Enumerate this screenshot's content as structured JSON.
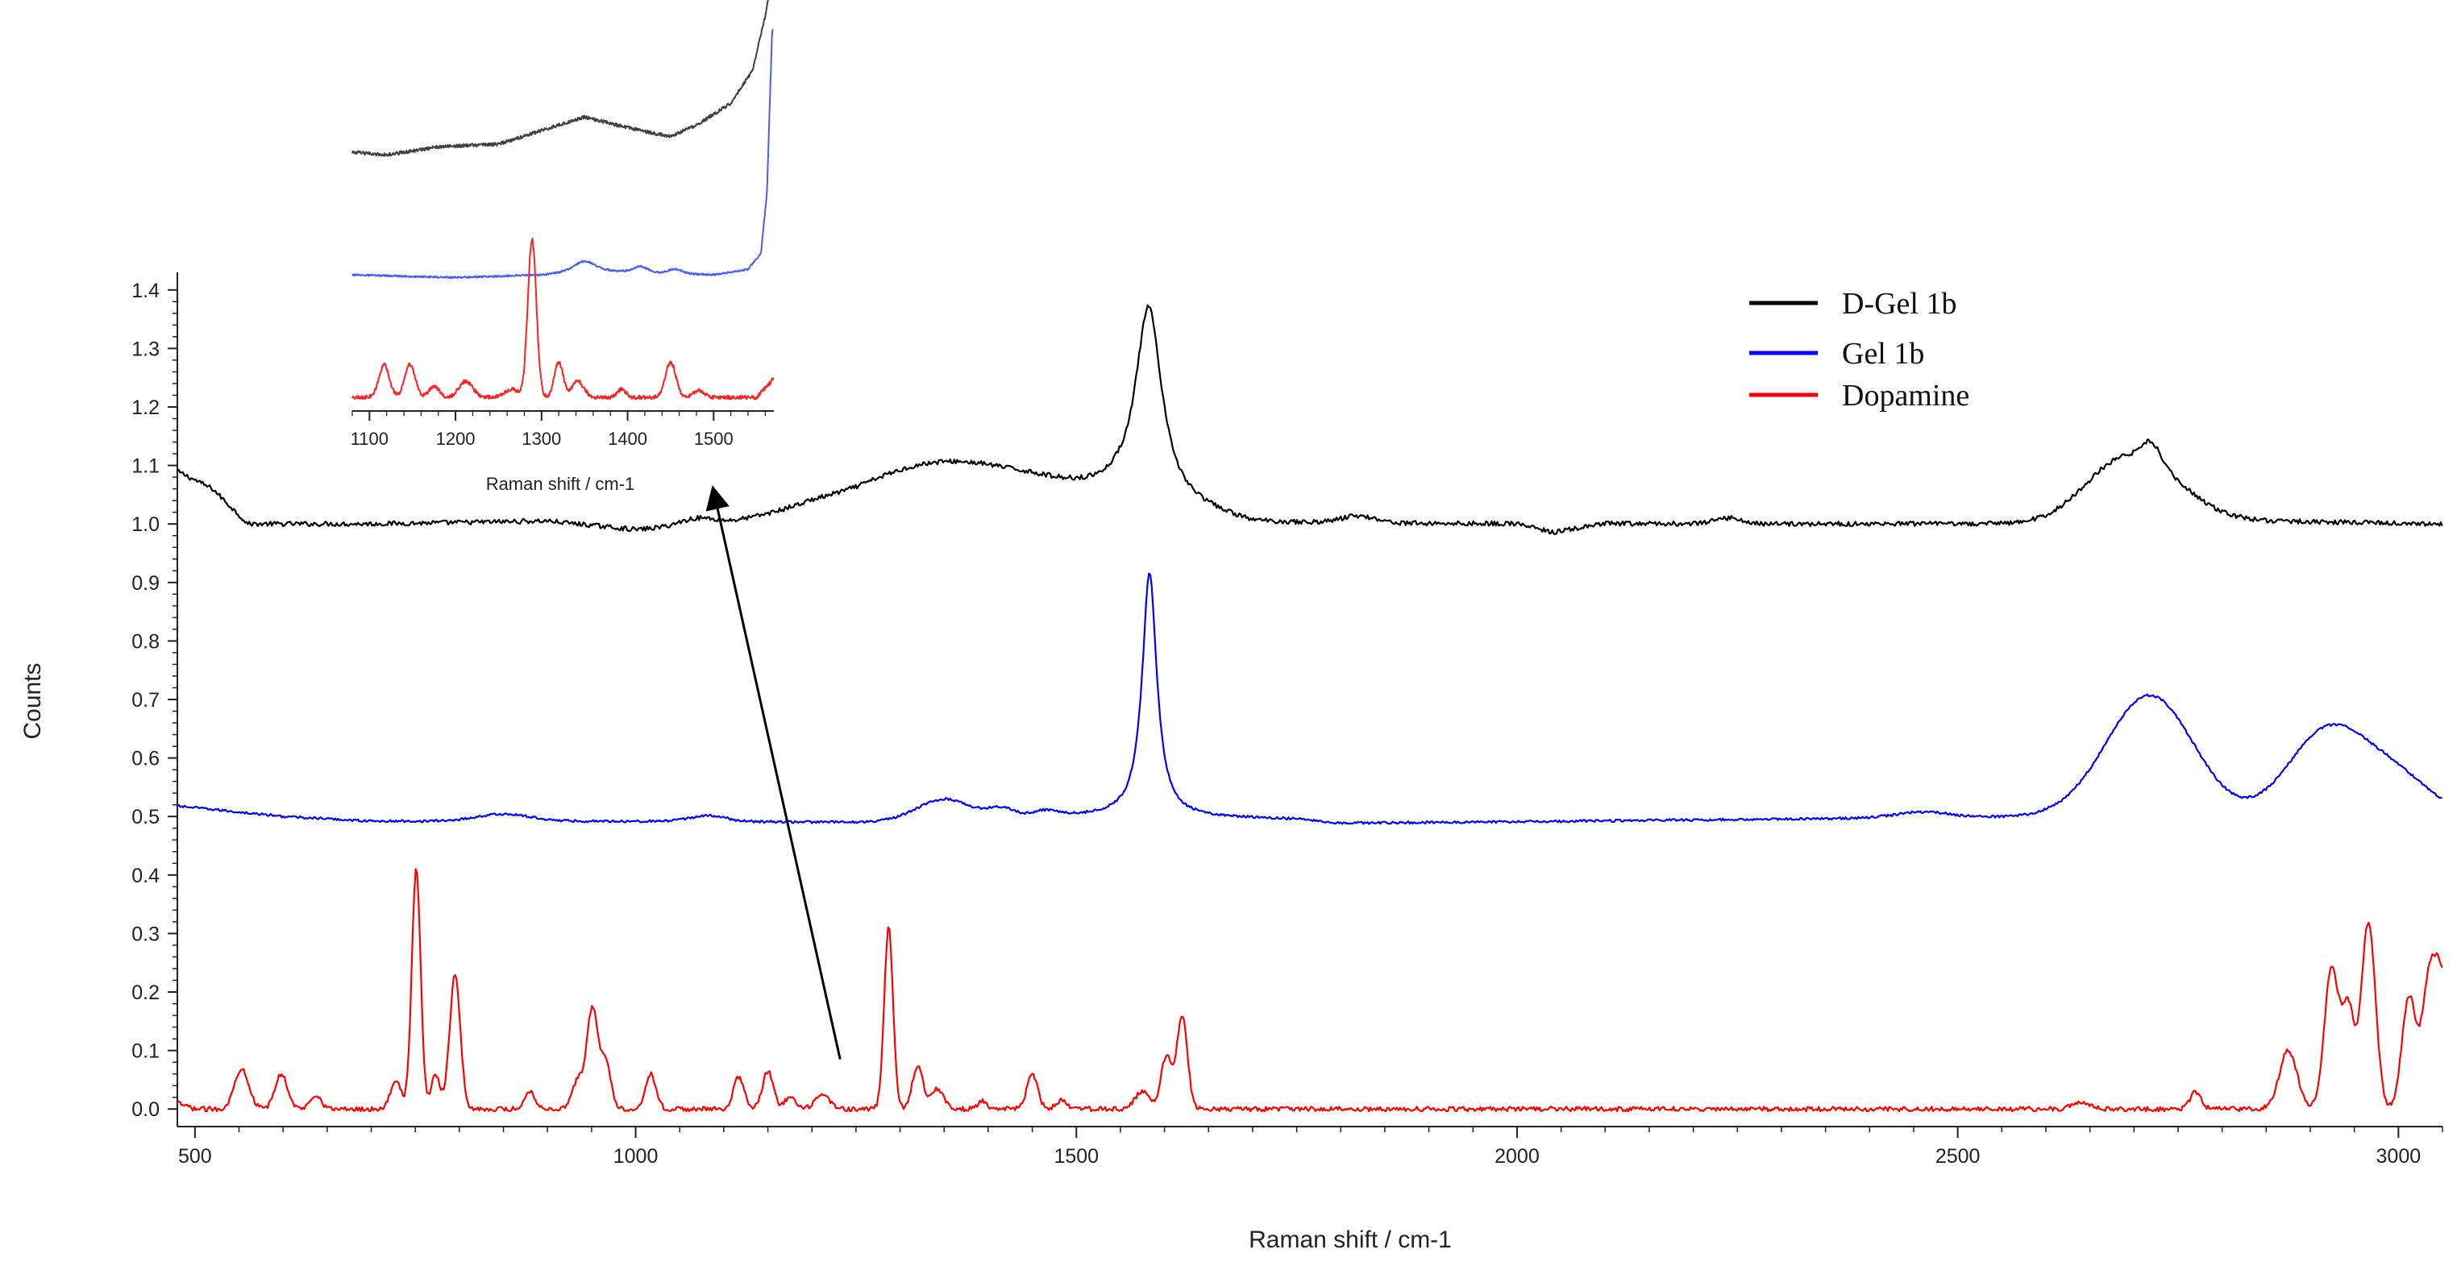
{
  "chart_data": [
    {
      "type": "line",
      "title": "",
      "xlabel": "Raman shift / cm-1",
      "ylabel": "Counts",
      "xlim": [
        480,
        3050
      ],
      "ylim": [
        -0.03,
        1.43
      ],
      "x_ticks": [
        500,
        1000,
        1500,
        2000,
        2500,
        3000
      ],
      "y_ticks": [
        "0.0",
        "0.1",
        "0.2",
        "0.3",
        "0.4",
        "0.5",
        "0.6",
        "0.7",
        "0.8",
        "0.9",
        "1.0",
        "1.1",
        "1.2",
        "1.3",
        "1.4"
      ],
      "grid": false,
      "legend_position": "top-right",
      "series": [
        {
          "name": "D-Gel 1b",
          "color": "#000000",
          "baseline": 1.0,
          "noise": 0.004,
          "drift": [
            [
              480,
              1.09
            ],
            [
              520,
              1.06
            ],
            [
              560,
              1.0
            ],
            [
              700,
              1.0
            ],
            [
              900,
              1.005
            ],
            [
              1000,
              0.99
            ],
            [
              1100,
              1.0
            ],
            [
              1200,
              1.02
            ],
            [
              1250,
              1.02
            ],
            [
              1450,
              1.05
            ],
            [
              1550,
              1.05
            ],
            [
              1700,
              1.0
            ],
            [
              2000,
              1.0
            ],
            [
              2040,
              0.985
            ],
            [
              2100,
              1.0
            ],
            [
              2600,
              1.0
            ],
            [
              2660,
              1.01
            ],
            [
              3050,
              1.0
            ]
          ],
          "peaks": [
            {
              "c": 1340,
              "h": 0.07,
              "w": 90,
              "shape": "g"
            },
            {
              "c": 1070,
              "h": 0.012,
              "w": 20,
              "shape": "g"
            },
            {
              "c": 1582,
              "h": 0.33,
              "w": 18,
              "shape": "l"
            },
            {
              "c": 1820,
              "h": 0.012,
              "w": 20,
              "shape": "g"
            },
            {
              "c": 2240,
              "h": 0.01,
              "w": 15,
              "shape": "g"
            },
            {
              "c": 2700,
              "h": 0.11,
              "w": 50,
              "shape": "g"
            },
            {
              "c": 2720,
              "h": 0.03,
              "w": 10,
              "shape": "g"
            }
          ]
        },
        {
          "name": "Gel  1b",
          "color": "#0000ff",
          "baseline": 0.5,
          "noise": 0.002,
          "drift": [
            [
              480,
              0.518
            ],
            [
              600,
              0.5
            ],
            [
              700,
              0.492
            ],
            [
              1000,
              0.492
            ],
            [
              1250,
              0.49
            ],
            [
              1500,
              0.5
            ],
            [
              1750,
              0.495
            ],
            [
              1800,
              0.488
            ],
            [
              2600,
              0.5
            ],
            [
              2800,
              0.495
            ],
            [
              3050,
              0.5
            ]
          ],
          "peaks": [
            {
              "c": 1350,
              "h": 0.035,
              "w": 30,
              "shape": "g"
            },
            {
              "c": 1415,
              "h": 0.015,
              "w": 15,
              "shape": "g"
            },
            {
              "c": 1465,
              "h": 0.01,
              "w": 15,
              "shape": "g"
            },
            {
              "c": 850,
              "h": 0.012,
              "w": 30,
              "shape": "g"
            },
            {
              "c": 1082,
              "h": 0.01,
              "w": 20,
              "shape": "g"
            },
            {
              "c": 1583,
              "h": 0.42,
              "w": 10,
              "shape": "l"
            },
            {
              "c": 2460,
              "h": 0.01,
              "w": 30,
              "shape": "g"
            },
            {
              "c": 2718,
              "h": 0.21,
              "w": 50,
              "shape": "g"
            },
            {
              "c": 2920,
              "h": 0.15,
              "w": 45,
              "shape": "g"
            },
            {
              "c": 3000,
              "h": 0.06,
              "w": 40,
              "shape": "g"
            }
          ]
        },
        {
          "name": "Dopamine",
          "color": "#ff0000",
          "baseline": 0.003,
          "noise": 0.004,
          "drift": [
            [
              480,
              0.01
            ],
            [
              500,
              0.0
            ],
            [
              3050,
              0.0
            ]
          ],
          "peaks": [
            {
              "c": 553,
              "h": 0.07,
              "w": 8,
              "shape": "g"
            },
            {
              "c": 598,
              "h": 0.06,
              "w": 7,
              "shape": "g"
            },
            {
              "c": 637,
              "h": 0.025,
              "w": 6,
              "shape": "g"
            },
            {
              "c": 728,
              "h": 0.05,
              "w": 6,
              "shape": "g"
            },
            {
              "c": 751,
              "h": 0.41,
              "w": 5,
              "shape": "g"
            },
            {
              "c": 773,
              "h": 0.06,
              "w": 5,
              "shape": "g"
            },
            {
              "c": 795,
              "h": 0.23,
              "w": 6,
              "shape": "g"
            },
            {
              "c": 880,
              "h": 0.03,
              "w": 6,
              "shape": "g"
            },
            {
              "c": 935,
              "h": 0.05,
              "w": 7,
              "shape": "g"
            },
            {
              "c": 951,
              "h": 0.17,
              "w": 6,
              "shape": "g"
            },
            {
              "c": 966,
              "h": 0.08,
              "w": 6,
              "shape": "g"
            },
            {
              "c": 1017,
              "h": 0.06,
              "w": 6,
              "shape": "g"
            },
            {
              "c": 1117,
              "h": 0.055,
              "w": 6,
              "shape": "g"
            },
            {
              "c": 1150,
              "h": 0.065,
              "w": 6,
              "shape": "g"
            },
            {
              "c": 1175,
              "h": 0.02,
              "w": 6,
              "shape": "g"
            },
            {
              "c": 1212,
              "h": 0.025,
              "w": 8,
              "shape": "g"
            },
            {
              "c": 1287,
              "h": 0.31,
              "w": 5,
              "shape": "g"
            },
            {
              "c": 1320,
              "h": 0.075,
              "w": 6,
              "shape": "g"
            },
            {
              "c": 1342,
              "h": 0.035,
              "w": 7,
              "shape": "g"
            },
            {
              "c": 1393,
              "h": 0.015,
              "w": 5,
              "shape": "g"
            },
            {
              "c": 1450,
              "h": 0.06,
              "w": 6,
              "shape": "g"
            },
            {
              "c": 1483,
              "h": 0.015,
              "w": 6,
              "shape": "g"
            },
            {
              "c": 1575,
              "h": 0.03,
              "w": 8,
              "shape": "g"
            },
            {
              "c": 1602,
              "h": 0.09,
              "w": 6,
              "shape": "g"
            },
            {
              "c": 1620,
              "h": 0.16,
              "w": 6,
              "shape": "g"
            },
            {
              "c": 2640,
              "h": 0.01,
              "w": 10,
              "shape": "g"
            },
            {
              "c": 2770,
              "h": 0.03,
              "w": 6,
              "shape": "g"
            },
            {
              "c": 2875,
              "h": 0.1,
              "w": 10,
              "shape": "g"
            },
            {
              "c": 2924,
              "h": 0.24,
              "w": 8,
              "shape": "g"
            },
            {
              "c": 2943,
              "h": 0.17,
              "w": 7,
              "shape": "g"
            },
            {
              "c": 2966,
              "h": 0.32,
              "w": 8,
              "shape": "g"
            },
            {
              "c": 3012,
              "h": 0.19,
              "w": 8,
              "shape": "g"
            },
            {
              "c": 3035,
              "h": 0.21,
              "w": 8,
              "shape": "g"
            },
            {
              "c": 3050,
              "h": 0.2,
              "w": 8,
              "shape": "g"
            }
          ]
        }
      ],
      "annotations": [
        {
          "type": "arrow",
          "from": [
            1232,
            0.085
          ],
          "to_label": "inset"
        }
      ]
    },
    {
      "type": "line",
      "title": "",
      "xlabel": "Raman shift / cm-1",
      "ylabel": "",
      "xlim": [
        1080,
        1570
      ],
      "x_ticks": [
        1100,
        1200,
        1300,
        1400,
        1500
      ],
      "y_ticks": [],
      "inset": true,
      "series": [
        {
          "color": "#404040",
          "offset": 0.9,
          "noise": 0.006,
          "drift": [
            [
              1080,
              0.0
            ],
            [
              1120,
              -0.01
            ],
            [
              1180,
              0.02
            ],
            [
              1250,
              0.03
            ],
            [
              1300,
              0.08
            ],
            [
              1350,
              0.13
            ],
            [
              1400,
              0.09
            ],
            [
              1430,
              0.07
            ],
            [
              1450,
              0.06
            ],
            [
              1480,
              0.1
            ],
            [
              1520,
              0.18
            ],
            [
              1545,
              0.3
            ],
            [
              1560,
              0.5
            ],
            [
              1570,
              0.7
            ]
          ],
          "peaks": []
        },
        {
          "color": "#4a5cff",
          "offset": 0.45,
          "noise": 0.003,
          "drift": [
            [
              1080,
              0.0
            ],
            [
              1200,
              -0.01
            ],
            [
              1300,
              0.0
            ],
            [
              1350,
              0.02
            ],
            [
              1420,
              0.01
            ],
            [
              1500,
              0.0
            ],
            [
              1540,
              0.02
            ],
            [
              1555,
              0.08
            ],
            [
              1562,
              0.3
            ],
            [
              1568,
              0.9
            ]
          ],
          "peaks": [
            {
              "c": 1350,
              "h": 0.03,
              "w": 12,
              "shape": "g"
            },
            {
              "c": 1415,
              "h": 0.02,
              "w": 8,
              "shape": "g"
            },
            {
              "c": 1455,
              "h": 0.015,
              "w": 8,
              "shape": "g"
            }
          ]
        },
        {
          "color": "#ff2020",
          "offset": 0.0,
          "noise": 0.007,
          "drift": [
            [
              1080,
              0.0
            ],
            [
              1550,
              0.0
            ],
            [
              1570,
              0.07
            ]
          ],
          "peaks": [
            {
              "c": 1117,
              "h": 0.12,
              "w": 6,
              "shape": "g"
            },
            {
              "c": 1147,
              "h": 0.12,
              "w": 6,
              "shape": "g"
            },
            {
              "c": 1175,
              "h": 0.04,
              "w": 6,
              "shape": "g"
            },
            {
              "c": 1212,
              "h": 0.06,
              "w": 8,
              "shape": "g"
            },
            {
              "c": 1265,
              "h": 0.03,
              "w": 8,
              "shape": "g"
            },
            {
              "c": 1289,
              "h": 0.58,
              "w": 5,
              "shape": "g"
            },
            {
              "c": 1320,
              "h": 0.13,
              "w": 5,
              "shape": "g"
            },
            {
              "c": 1342,
              "h": 0.06,
              "w": 7,
              "shape": "g"
            },
            {
              "c": 1393,
              "h": 0.03,
              "w": 5,
              "shape": "g"
            },
            {
              "c": 1450,
              "h": 0.13,
              "w": 6,
              "shape": "g"
            },
            {
              "c": 1483,
              "h": 0.025,
              "w": 6,
              "shape": "g"
            }
          ]
        }
      ]
    }
  ]
}
